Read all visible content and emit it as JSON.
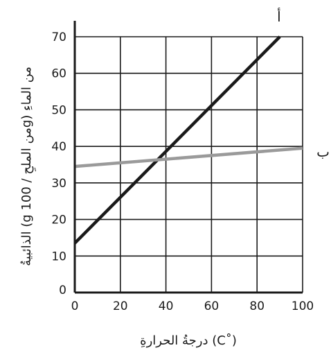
{
  "chart_data": {
    "type": "line",
    "xlabel": "درجةُ الحرارةِ (C˚)",
    "ylabel": "الذائبيةُ (g من الملحِ / 100g) من الماءِ",
    "xlim": [
      0,
      100
    ],
    "ylim": [
      0,
      70
    ],
    "x_ticks": [
      "0",
      "20",
      "40",
      "60",
      "80",
      "100"
    ],
    "y_ticks": [
      "0",
      "10",
      "20",
      "30",
      "40",
      "50",
      "60",
      "70"
    ],
    "grid": true,
    "series": [
      {
        "name": "أ",
        "color": "#1a1a1a",
        "x": [
          0,
          90
        ],
        "y": [
          13.5,
          70
        ]
      },
      {
        "name": "ب",
        "color": "#9a9a9a",
        "x": [
          0,
          100
        ],
        "y": [
          34.5,
          39.5
        ]
      }
    ]
  }
}
